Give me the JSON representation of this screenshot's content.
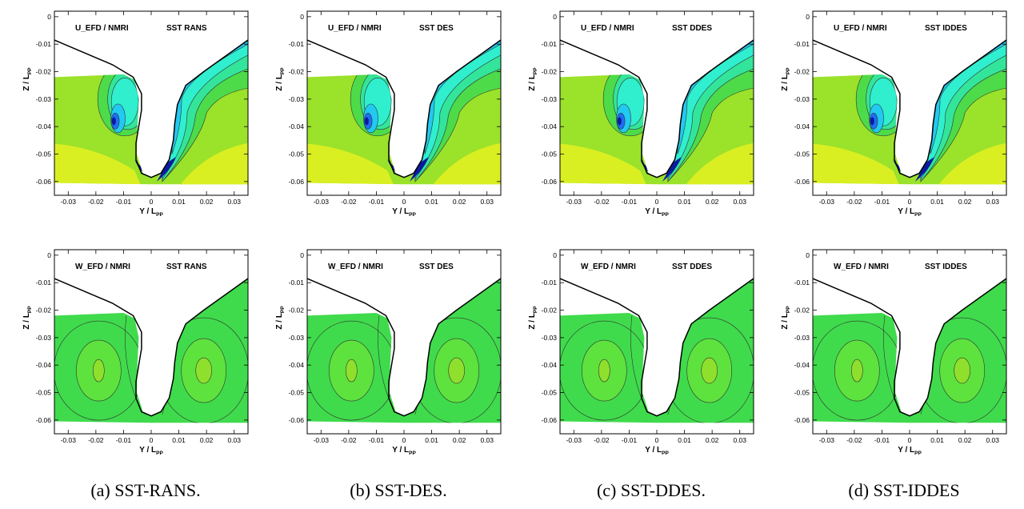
{
  "chart_data": [
    {
      "type": "contour",
      "row": "top",
      "column": "a",
      "quantity": "U",
      "xlabel": "Y / L",
      "xlabel_sub": "PP",
      "ylabel": "Z / L",
      "ylabel_sub": "PP",
      "label_left": "U_EFD / NMRI",
      "label_right": "SST RANS",
      "xlim": [
        -0.035,
        0.035
      ],
      "ylim": [
        -0.065,
        0.002
      ],
      "xticks": [
        "-0.03",
        "-0.02",
        "-0.01",
        "0",
        "0.01",
        "0.02",
        "0.03"
      ],
      "yticks": [
        "0",
        "-0.01",
        "-0.02",
        "-0.03",
        "-0.04",
        "-0.05",
        "-0.06"
      ],
      "colormap": [
        "#0a1aa0",
        "#1e6ff0",
        "#22c9f0",
        "#2fefcf",
        "#33e59a",
        "#4ddb4a",
        "#9be22a",
        "#d9ef22"
      ]
    },
    {
      "type": "contour",
      "row": "top",
      "column": "b",
      "quantity": "U",
      "xlabel": "Y / L",
      "xlabel_sub": "PP",
      "ylabel": "Z / L",
      "ylabel_sub": "PP",
      "label_left": "U_EFD / NMRI",
      "label_right": "SST DES",
      "xlim": [
        -0.035,
        0.035
      ],
      "ylim": [
        -0.065,
        0.002
      ],
      "xticks": [
        "-0.03",
        "-0.02",
        "-0.01",
        "0",
        "0.01",
        "0.02",
        "0.03"
      ],
      "yticks": [
        "0",
        "-0.01",
        "-0.02",
        "-0.03",
        "-0.04",
        "-0.05",
        "-0.06"
      ],
      "colormap": [
        "#0a1aa0",
        "#1e6ff0",
        "#22c9f0",
        "#2fefcf",
        "#33e59a",
        "#4ddb4a",
        "#9be22a",
        "#d9ef22"
      ]
    },
    {
      "type": "contour",
      "row": "top",
      "column": "c",
      "quantity": "U",
      "xlabel": "Y / L",
      "xlabel_sub": "PP",
      "ylabel": "Z / L",
      "ylabel_sub": "PP",
      "label_left": "U_EFD / NMRI",
      "label_right": "SST DDES",
      "xlim": [
        -0.035,
        0.035
      ],
      "ylim": [
        -0.065,
        0.002
      ],
      "xticks": [
        "-0.03",
        "-0.02",
        "-0.01",
        "0",
        "0.01",
        "0.02",
        "0.03"
      ],
      "yticks": [
        "0",
        "-0.01",
        "-0.02",
        "-0.03",
        "-0.04",
        "-0.05",
        "-0.06"
      ],
      "colormap": [
        "#0a1aa0",
        "#1e6ff0",
        "#22c9f0",
        "#2fefcf",
        "#33e59a",
        "#4ddb4a",
        "#9be22a",
        "#d9ef22"
      ]
    },
    {
      "type": "contour",
      "row": "top",
      "column": "d",
      "quantity": "U",
      "xlabel": "Y / L",
      "xlabel_sub": "PP",
      "ylabel": "Z / L",
      "ylabel_sub": "PP",
      "label_left": "U_EFD / NMRI",
      "label_right": "SST IDDES",
      "xlim": [
        -0.035,
        0.035
      ],
      "ylim": [
        -0.065,
        0.002
      ],
      "xticks": [
        "-0.03",
        "-0.02",
        "-0.01",
        "0",
        "0.01",
        "0.02",
        "0.03"
      ],
      "yticks": [
        "0",
        "-0.01",
        "-0.02",
        "-0.03",
        "-0.04",
        "-0.05",
        "-0.06"
      ],
      "colormap": [
        "#0a1aa0",
        "#1e6ff0",
        "#22c9f0",
        "#2fefcf",
        "#33e59a",
        "#4ddb4a",
        "#9be22a",
        "#d9ef22"
      ]
    },
    {
      "type": "contour",
      "row": "bottom",
      "column": "a",
      "quantity": "W",
      "xlabel": "Y / L",
      "xlabel_sub": "PP",
      "ylabel": "Z / L",
      "ylabel_sub": "PP",
      "label_left": "W_EFD / NMRI",
      "label_right": "SST RANS",
      "xlim": [
        -0.035,
        0.035
      ],
      "ylim": [
        -0.065,
        0.002
      ],
      "xticks": [
        "-0.03",
        "-0.02",
        "-0.01",
        "0",
        "0.01",
        "0.02",
        "0.03"
      ],
      "yticks": [
        "0",
        "-0.01",
        "-0.02",
        "-0.03",
        "-0.04",
        "-0.05",
        "-0.06"
      ],
      "colormap": [
        "#1ec8c0",
        "#33dd88",
        "#3fdb4c",
        "#5ee23e",
        "#8fe02c",
        "#c6e924"
      ]
    },
    {
      "type": "contour",
      "row": "bottom",
      "column": "b",
      "quantity": "W",
      "xlabel": "Y / L",
      "xlabel_sub": "PP",
      "ylabel": "Z / L",
      "ylabel_sub": "PP",
      "label_left": "W_EFD / NMRI",
      "label_right": "SST DES",
      "xlim": [
        -0.035,
        0.035
      ],
      "ylim": [
        -0.065,
        0.002
      ],
      "xticks": [
        "-0.03",
        "-0.02",
        "-0.01",
        "0",
        "0.01",
        "0.02",
        "0.03"
      ],
      "yticks": [
        "0",
        "-0.01",
        "-0.02",
        "-0.03",
        "-0.04",
        "-0.05",
        "-0.06"
      ],
      "colormap": [
        "#1ec8c0",
        "#33dd88",
        "#3fdb4c",
        "#5ee23e",
        "#8fe02c",
        "#c6e924"
      ]
    },
    {
      "type": "contour",
      "row": "bottom",
      "column": "c",
      "quantity": "W",
      "xlabel": "Y / L",
      "xlabel_sub": "PP",
      "ylabel": "Z / L",
      "ylabel_sub": "PP",
      "label_left": "W_EFD / NMRI",
      "label_right": "SST DDES",
      "xlim": [
        -0.035,
        0.035
      ],
      "ylim": [
        -0.065,
        0.002
      ],
      "xticks": [
        "-0.03",
        "-0.02",
        "-0.01",
        "0",
        "0.01",
        "0.02",
        "0.03"
      ],
      "yticks": [
        "0",
        "-0.01",
        "-0.02",
        "-0.03",
        "-0.04",
        "-0.05",
        "-0.06"
      ],
      "colormap": [
        "#1ec8c0",
        "#33dd88",
        "#3fdb4c",
        "#5ee23e",
        "#8fe02c",
        "#c6e924"
      ]
    },
    {
      "type": "contour",
      "row": "bottom",
      "column": "d",
      "quantity": "W",
      "xlabel": "Y / L",
      "xlabel_sub": "PP",
      "ylabel": "Z / L",
      "ylabel_sub": "PP",
      "label_left": "W_EFD / NMRI",
      "label_right": "SST IDDES",
      "xlim": [
        -0.035,
        0.035
      ],
      "ylim": [
        -0.065,
        0.002
      ],
      "xticks": [
        "-0.03",
        "-0.02",
        "-0.01",
        "0",
        "0.01",
        "0.02",
        "0.03"
      ],
      "yticks": [
        "0",
        "-0.01",
        "-0.02",
        "-0.03",
        "-0.04",
        "-0.05",
        "-0.06"
      ],
      "colormap": [
        "#1ec8c0",
        "#33dd88",
        "#3fdb4c",
        "#5ee23e",
        "#8fe02c",
        "#c6e924"
      ]
    }
  ],
  "captions": [
    "(a) SST-RANS.",
    "(b) SST-DES.",
    "(c) SST-DDES.",
    "(d) SST-IDDES"
  ]
}
